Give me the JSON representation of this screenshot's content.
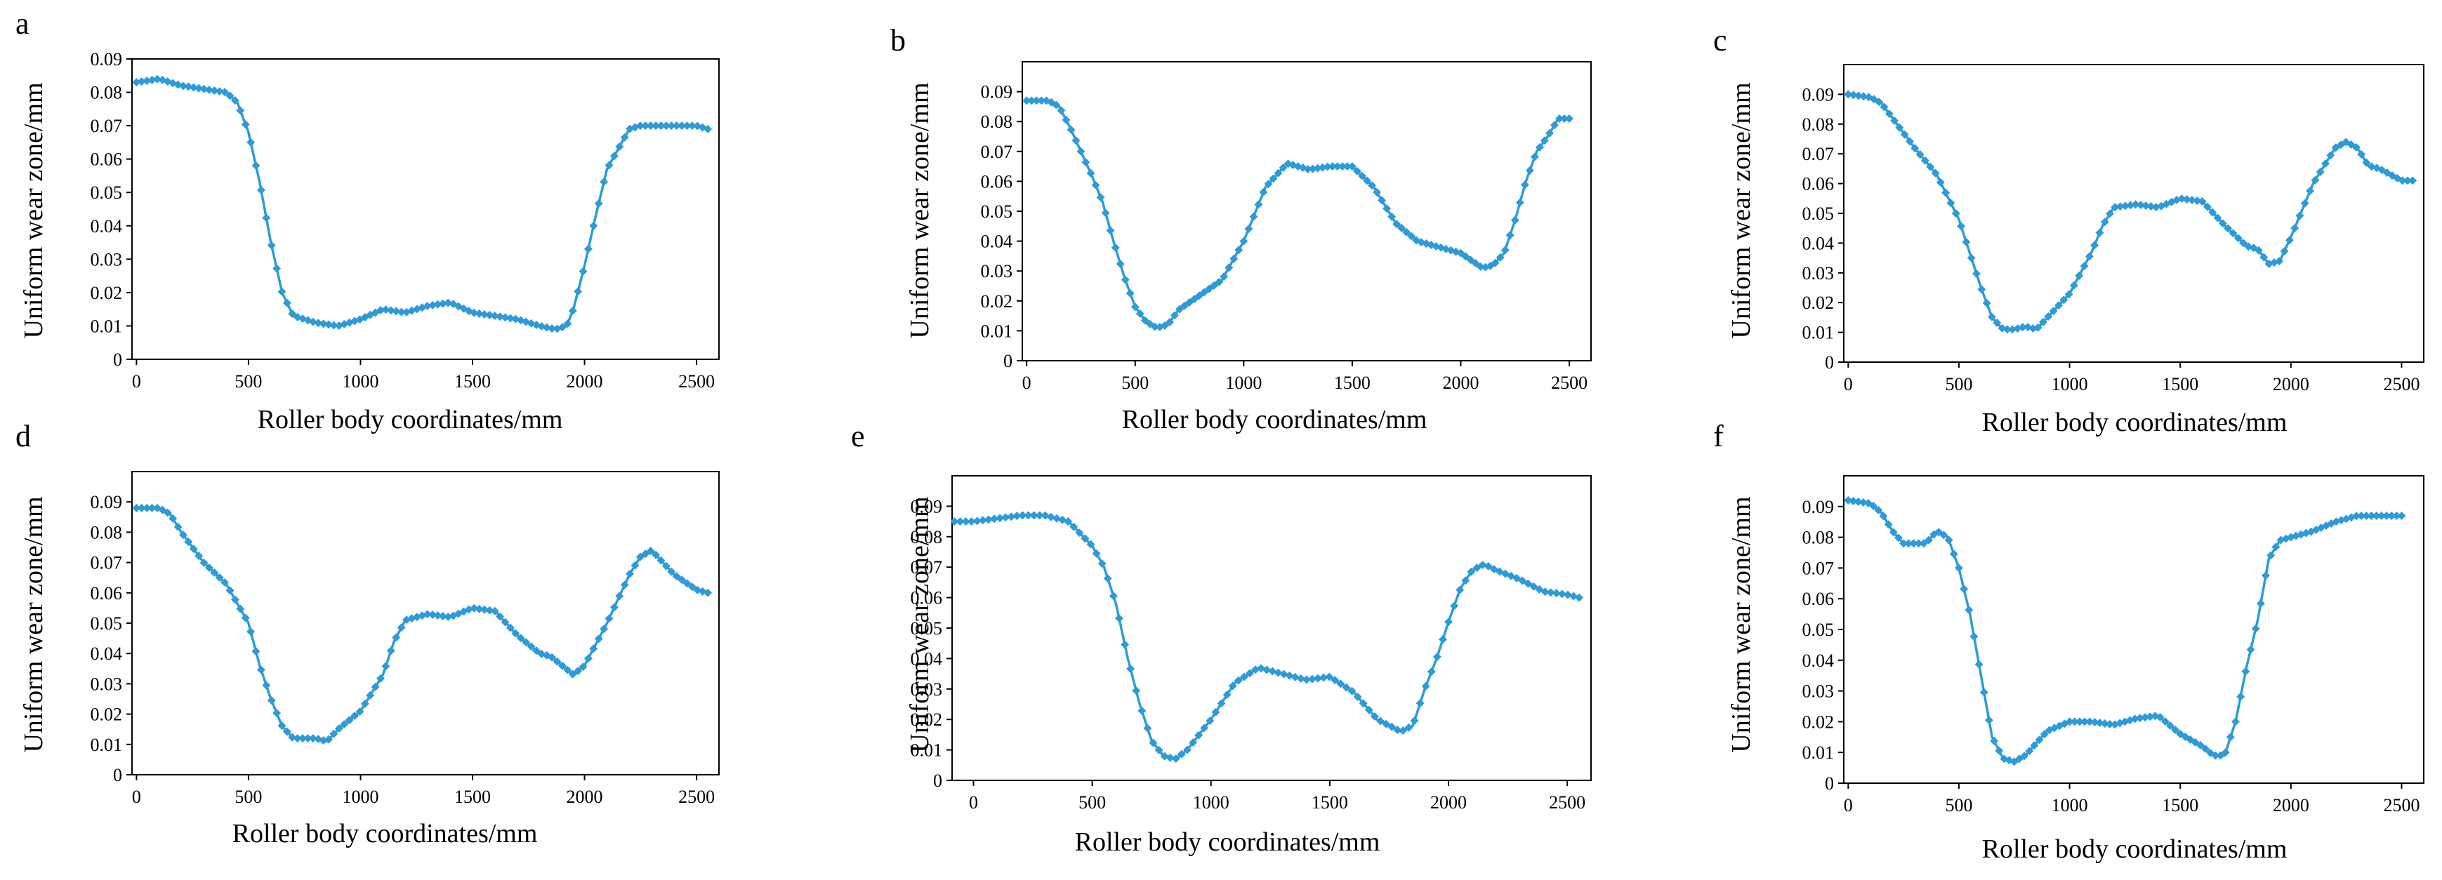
{
  "figure": {
    "line_color": "#2f9bd6",
    "frame_color": "#000000"
  },
  "chart_data": [
    {
      "panel": "a",
      "type": "line",
      "title": "",
      "xlabel": "Roller body coordinates/mm",
      "ylabel": "Uniform wear zone/mm",
      "xlim": [
        -20,
        2600
      ],
      "ylim": [
        0,
        0.09
      ],
      "xticks": [
        "0",
        "500",
        "1000",
        "1500",
        "2000",
        "2500"
      ],
      "yticks": [
        "0",
        "0.01",
        "0.02",
        "0.03",
        "0.04",
        "0.05",
        "0.06",
        "0.07",
        "0.08",
        "0.09"
      ],
      "series": [
        {
          "name": "Uniform wear zone",
          "x": [
            0,
            100,
            200,
            300,
            400,
            450,
            500,
            550,
            600,
            650,
            700,
            800,
            900,
            1000,
            1100,
            1200,
            1300,
            1400,
            1500,
            1600,
            1700,
            1800,
            1870,
            1920,
            1950,
            2000,
            2050,
            2100,
            2150,
            2200,
            2250,
            2300,
            2400,
            2500,
            2550
          ],
          "y": [
            0.083,
            0.084,
            0.082,
            0.081,
            0.08,
            0.077,
            0.068,
            0.053,
            0.035,
            0.02,
            0.013,
            0.011,
            0.01,
            0.012,
            0.015,
            0.014,
            0.016,
            0.017,
            0.014,
            0.013,
            0.012,
            0.01,
            0.009,
            0.01,
            0.015,
            0.028,
            0.043,
            0.057,
            0.063,
            0.069,
            0.07,
            0.07,
            0.07,
            0.07,
            0.069
          ]
        }
      ]
    },
    {
      "panel": "b",
      "type": "line",
      "title": "",
      "xlabel": "Roller body coordinates/mm",
      "ylabel": "Uniform wear zone/mm",
      "xlim": [
        -20,
        2600
      ],
      "ylim": [
        0,
        0.1
      ],
      "xticks": [
        "0",
        "500",
        "1000",
        "1500",
        "2000",
        "2500"
      ],
      "yticks": [
        "0",
        "0.01",
        "0.02",
        "0.03",
        "0.04",
        "0.05",
        "0.06",
        "0.07",
        "0.08",
        "0.09"
      ],
      "series": [
        {
          "name": "Uniform wear zone",
          "x": [
            0,
            100,
            150,
            200,
            250,
            300,
            350,
            400,
            450,
            500,
            550,
            600,
            650,
            700,
            800,
            900,
            1000,
            1100,
            1200,
            1300,
            1400,
            1500,
            1600,
            1700,
            1800,
            1900,
            2000,
            2100,
            2150,
            2200,
            2250,
            2300,
            2350,
            2400,
            2450,
            2500
          ],
          "y": [
            0.087,
            0.087,
            0.085,
            0.078,
            0.07,
            0.062,
            0.053,
            0.04,
            0.028,
            0.018,
            0.013,
            0.011,
            0.012,
            0.017,
            0.022,
            0.027,
            0.04,
            0.058,
            0.066,
            0.064,
            0.065,
            0.065,
            0.058,
            0.046,
            0.04,
            0.038,
            0.036,
            0.031,
            0.032,
            0.036,
            0.047,
            0.06,
            0.07,
            0.075,
            0.081,
            0.081
          ]
        }
      ]
    },
    {
      "panel": "c",
      "type": "line",
      "title": "",
      "xlabel": "Roller body coordinates/mm",
      "ylabel": "Uniform wear zone/mm",
      "xlim": [
        -20,
        2600
      ],
      "ylim": [
        0,
        0.1
      ],
      "xticks": [
        "0",
        "500",
        "1000",
        "1500",
        "2000",
        "2500"
      ],
      "yticks": [
        "0",
        "0.01",
        "0.02",
        "0.03",
        "0.04",
        "0.05",
        "0.06",
        "0.07",
        "0.08",
        "0.09"
      ],
      "series": [
        {
          "name": "Uniform wear zone",
          "x": [
            0,
            100,
            150,
            200,
            300,
            400,
            500,
            600,
            650,
            700,
            750,
            800,
            850,
            900,
            1000,
            1100,
            1150,
            1200,
            1300,
            1400,
            1500,
            1600,
            1700,
            1800,
            1850,
            1900,
            1950,
            2000,
            2100,
            2200,
            2250,
            2300,
            2350,
            2400,
            2500,
            2550
          ],
          "y": [
            0.09,
            0.089,
            0.087,
            0.082,
            0.072,
            0.063,
            0.048,
            0.025,
            0.015,
            0.011,
            0.011,
            0.012,
            0.011,
            0.015,
            0.023,
            0.037,
            0.046,
            0.052,
            0.053,
            0.052,
            0.055,
            0.054,
            0.046,
            0.039,
            0.038,
            0.033,
            0.034,
            0.042,
            0.06,
            0.072,
            0.074,
            0.072,
            0.066,
            0.065,
            0.061,
            0.061
          ]
        }
      ]
    },
    {
      "panel": "d",
      "type": "line",
      "title": "",
      "xlabel": "Roller body coordinates/mm",
      "ylabel": "Uniform wear zone/mm",
      "xlim": [
        -20,
        2600
      ],
      "ylim": [
        0,
        0.1
      ],
      "xticks": [
        "0",
        "500",
        "1000",
        "1500",
        "2000",
        "2500"
      ],
      "yticks": [
        "0",
        "0.01",
        "0.02",
        "0.03",
        "0.04",
        "0.05",
        "0.06",
        "0.07",
        "0.08",
        "0.09"
      ],
      "series": [
        {
          "name": "Uniform wear zone",
          "x": [
            0,
            100,
            150,
            200,
            300,
            400,
            500,
            550,
            600,
            650,
            700,
            750,
            800,
            850,
            900,
            1000,
            1100,
            1150,
            1200,
            1300,
            1400,
            1500,
            1600,
            1700,
            1800,
            1850,
            1900,
            1950,
            2000,
            2100,
            2200,
            2250,
            2300,
            2350,
            2400,
            2500,
            2550
          ],
          "y": [
            0.088,
            0.088,
            0.086,
            0.08,
            0.07,
            0.063,
            0.05,
            0.036,
            0.025,
            0.016,
            0.012,
            0.012,
            0.012,
            0.011,
            0.015,
            0.021,
            0.033,
            0.044,
            0.051,
            0.053,
            0.052,
            0.055,
            0.054,
            0.046,
            0.04,
            0.039,
            0.036,
            0.033,
            0.036,
            0.05,
            0.066,
            0.072,
            0.074,
            0.07,
            0.066,
            0.061,
            0.06
          ]
        }
      ]
    },
    {
      "panel": "e",
      "type": "line",
      "title": "",
      "xlabel": "Roller body coordinates/mm",
      "ylabel": "Uniform wear zone/mm",
      "xlim": [
        -90,
        2600
      ],
      "ylim": [
        0,
        0.1
      ],
      "xticks": [
        "0",
        "500",
        "1000",
        "1500",
        "2000",
        "2500"
      ],
      "yticks": [
        "0",
        "0.01",
        "0.02",
        "0.03",
        "0.04",
        "0.05",
        "0.06",
        "0.07",
        "0.08",
        "0.09"
      ],
      "series": [
        {
          "name": "Uniform wear zone",
          "x": [
            -80,
            0,
            100,
            200,
            300,
            400,
            500,
            550,
            600,
            650,
            700,
            750,
            800,
            850,
            900,
            950,
            1000,
            1100,
            1200,
            1300,
            1400,
            1500,
            1600,
            1700,
            1800,
            1850,
            1900,
            1950,
            2000,
            2050,
            2100,
            2150,
            2200,
            2300,
            2400,
            2500,
            2550
          ],
          "y": [
            0.085,
            0.085,
            0.086,
            0.087,
            0.087,
            0.085,
            0.077,
            0.07,
            0.058,
            0.04,
            0.025,
            0.013,
            0.008,
            0.007,
            0.01,
            0.015,
            0.02,
            0.032,
            0.037,
            0.035,
            0.033,
            0.034,
            0.029,
            0.02,
            0.016,
            0.018,
            0.03,
            0.04,
            0.052,
            0.063,
            0.069,
            0.071,
            0.069,
            0.066,
            0.062,
            0.061,
            0.06
          ]
        }
      ]
    },
    {
      "panel": "f",
      "type": "line",
      "title": "",
      "xlabel": "Roller body coordinates/mm",
      "ylabel": "Uniform wear zone/mm",
      "xlim": [
        -20,
        2600
      ],
      "ylim": [
        0,
        0.1
      ],
      "xticks": [
        "0",
        "500",
        "1000",
        "1500",
        "2000",
        "2500"
      ],
      "yticks": [
        "0",
        "0.01",
        "0.02",
        "0.03",
        "0.04",
        "0.05",
        "0.06",
        "0.07",
        "0.08",
        "0.09"
      ],
      "series": [
        {
          "name": "Uniform wear zone",
          "x": [
            0,
            100,
            150,
            200,
            250,
            300,
            350,
            400,
            450,
            500,
            550,
            600,
            650,
            700,
            750,
            800,
            900,
            1000,
            1100,
            1200,
            1300,
            1400,
            1500,
            1600,
            1650,
            1700,
            1750,
            1800,
            1850,
            1900,
            1950,
            2000,
            2100,
            2200,
            2300,
            2400,
            2500
          ],
          "y": [
            0.092,
            0.091,
            0.088,
            0.082,
            0.078,
            0.078,
            0.078,
            0.082,
            0.08,
            0.07,
            0.055,
            0.035,
            0.015,
            0.008,
            0.007,
            0.009,
            0.017,
            0.02,
            0.02,
            0.019,
            0.021,
            0.022,
            0.016,
            0.012,
            0.009,
            0.009,
            0.02,
            0.038,
            0.053,
            0.073,
            0.079,
            0.08,
            0.082,
            0.085,
            0.087,
            0.087,
            0.087
          ]
        }
      ]
    }
  ]
}
